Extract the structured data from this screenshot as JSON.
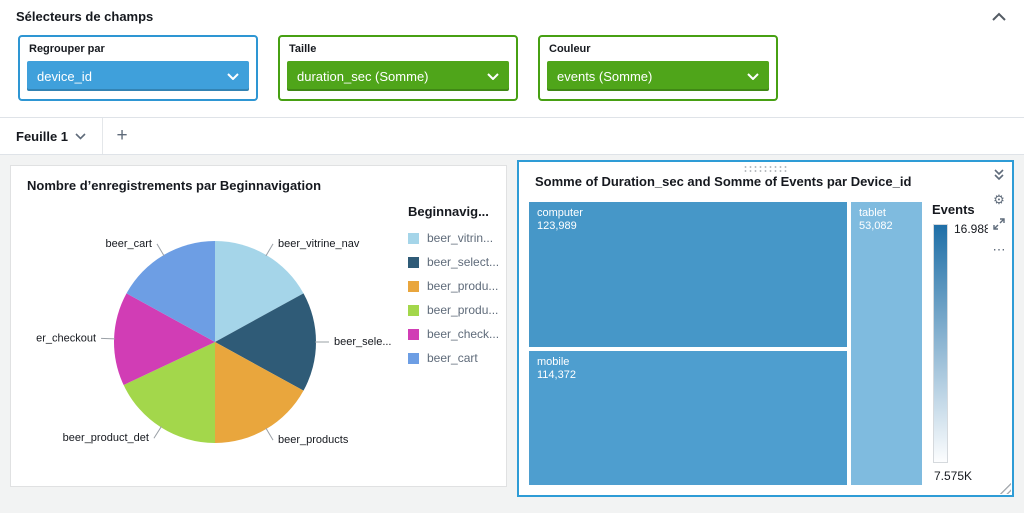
{
  "header": {
    "title": "Sélecteurs de champs"
  },
  "field_wells": [
    {
      "label": "Regrouper par",
      "value": "device_id",
      "fill": "#3fa0db",
      "border": "#2e96d3"
    },
    {
      "label": "Taille",
      "value": "duration_sec (Somme)",
      "fill": "#4fa51a",
      "border": "#47a013"
    },
    {
      "label": "Couleur",
      "value": "events (Somme)",
      "fill": "#4fa51a",
      "border": "#47a013"
    }
  ],
  "sheet_tabs": {
    "active_label": "Feuille 1",
    "add_button": "+"
  },
  "pie_visual": {
    "title": "Nombre d’enregistrements par Beginnavigation",
    "legend_title": "Beginnavig...",
    "chart_data": {
      "type": "pie",
      "slices": [
        {
          "label": "beer_vitrine_nav",
          "legend_label": "beer_vitrin...",
          "value": 17,
          "color": "#a5d5e9"
        },
        {
          "label": "beer_sele...",
          "legend_label": "beer_select...",
          "value": 16,
          "color": "#2f5b77"
        },
        {
          "label": "beer_products",
          "legend_label": "beer_produ...",
          "value": 17,
          "color": "#e9a63d"
        },
        {
          "label": "beer_product_det",
          "legend_label": "beer_produ...",
          "value": 18,
          "color": "#a3d74b"
        },
        {
          "label": "er_checkout",
          "legend_label": "beer_check...",
          "value": 15,
          "color": "#d13db5"
        },
        {
          "label": "beer_cart",
          "legend_label": "beer_cart",
          "value": 17,
          "color": "#6d9ee4"
        }
      ]
    }
  },
  "treemap_visual": {
    "title": "Somme of Duration_sec and Somme of Events par Device_id",
    "legend_title": "Events",
    "legend_max": "16.988K",
    "legend_min": "7.575K",
    "gradient_top": "#1f6fa7",
    "gradient_bottom": "#fcfdfe",
    "chart_data": {
      "type": "treemap",
      "nodes": [
        {
          "label": "computer",
          "size": 123989,
          "size_display": "123,989",
          "color": "#4697c8"
        },
        {
          "label": "mobile",
          "size": 114372,
          "size_display": "114,372",
          "color": "#4e9ecf"
        },
        {
          "label": "tablet",
          "size": 53082,
          "size_display": "53,082",
          "color": "#7fbbdf"
        }
      ]
    }
  }
}
